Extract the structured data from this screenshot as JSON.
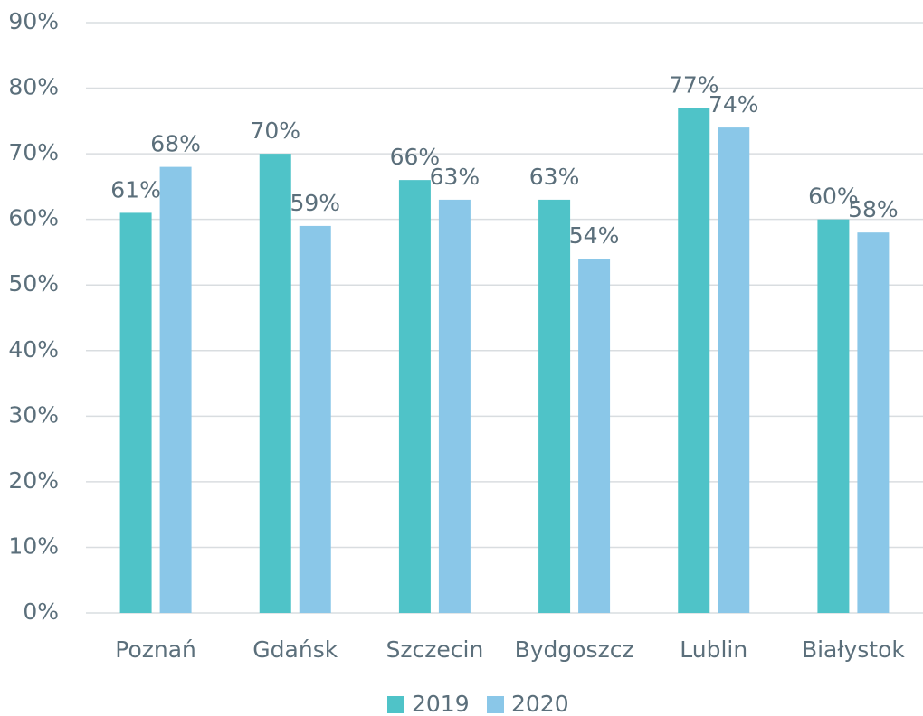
{
  "chart_data": {
    "type": "bar",
    "categories": [
      "Poznań",
      "Gdańsk",
      "Szczecin",
      "Bydgoszcz",
      "Lublin",
      "Białystok"
    ],
    "series": [
      {
        "name": "2019",
        "color": "#4fc3c8",
        "values": [
          61,
          70,
          66,
          63,
          77,
          60
        ],
        "value_labels": [
          "61%",
          "70%",
          "66%",
          "63%",
          "77%",
          "60%"
        ]
      },
      {
        "name": "2020",
        "color": "#8ac7e8",
        "values": [
          68,
          59,
          63,
          54,
          74,
          58
        ],
        "value_labels": [
          "68%",
          "59%",
          "63%",
          "54%",
          "74%",
          "58%"
        ]
      }
    ],
    "ylim": [
      0,
      90
    ],
    "yticks": [
      {
        "value": 0,
        "label": "0%"
      },
      {
        "value": 10,
        "label": "10%"
      },
      {
        "value": 20,
        "label": "20%"
      },
      {
        "value": 30,
        "label": "30%"
      },
      {
        "value": 40,
        "label": "40%"
      },
      {
        "value": 50,
        "label": "50%"
      },
      {
        "value": 60,
        "label": "60%"
      },
      {
        "value": 70,
        "label": "70%"
      },
      {
        "value": 80,
        "label": "80%"
      },
      {
        "value": 90,
        "label": "90%"
      }
    ],
    "grid": true,
    "legend": "bottom"
  }
}
